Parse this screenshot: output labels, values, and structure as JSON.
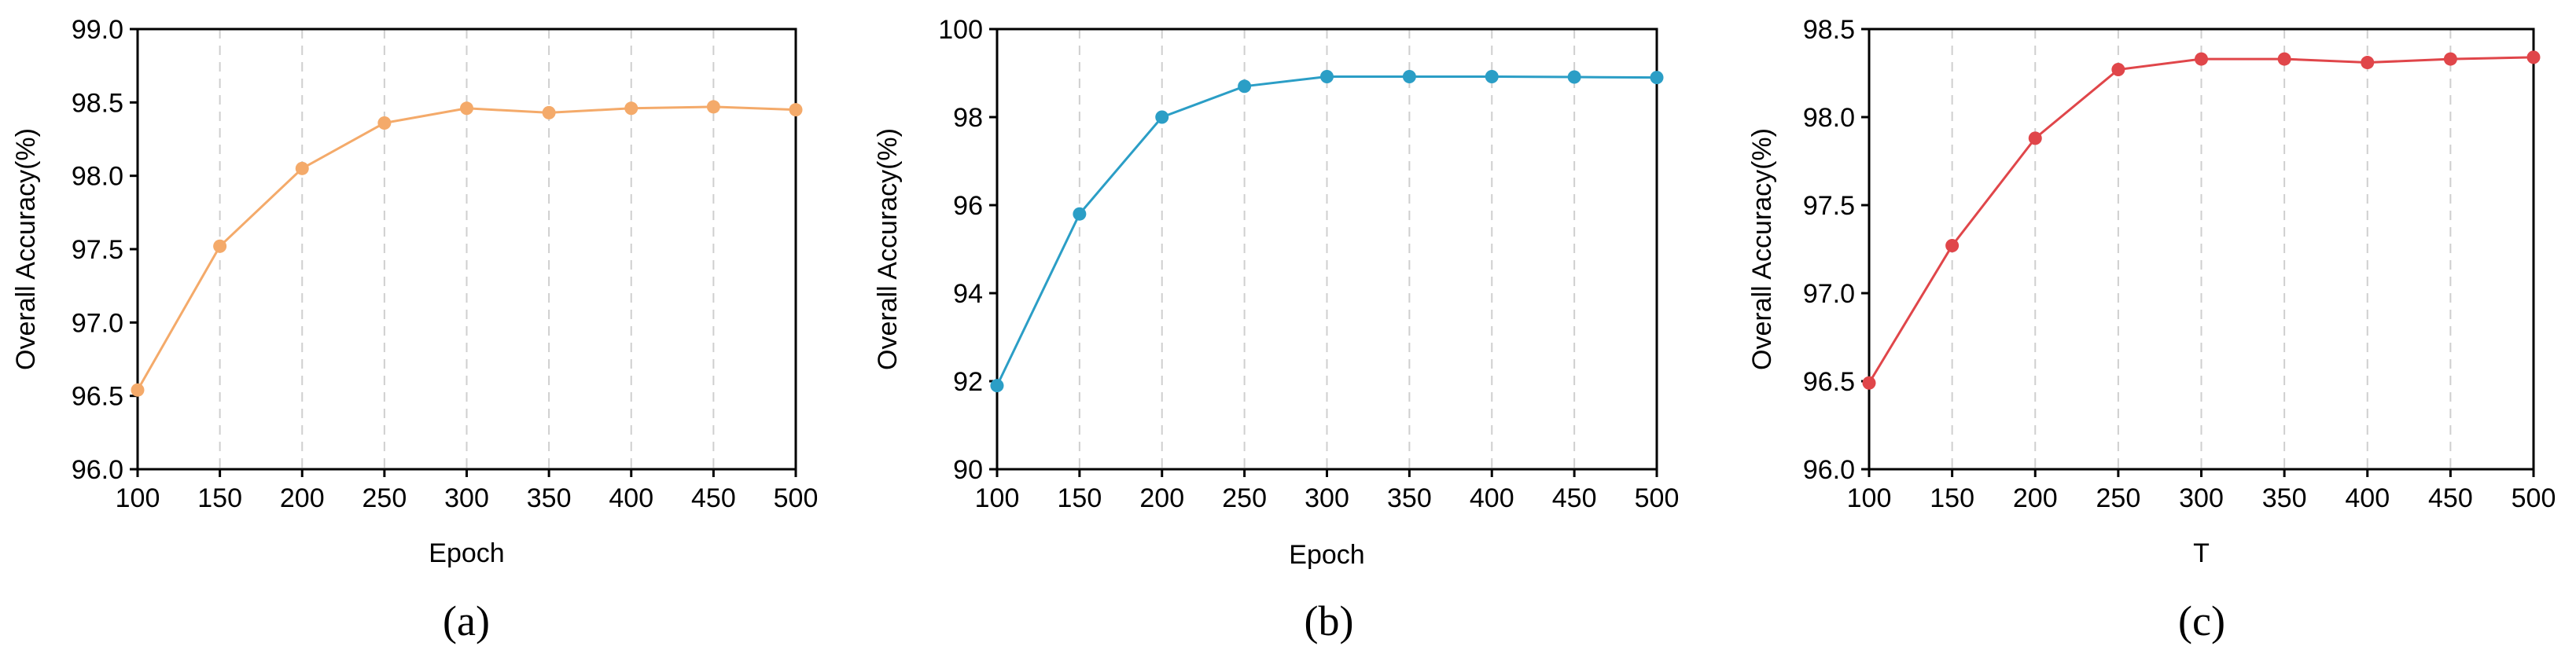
{
  "chart_data": [
    {
      "type": "line",
      "caption": "(a)",
      "xlabel": "Epoch",
      "ylabel": "Overall Accuracy(%)",
      "x": [
        100,
        150,
        200,
        250,
        300,
        350,
        400,
        450,
        500
      ],
      "xlim": [
        100,
        500
      ],
      "ylim": [
        96.0,
        99.0
      ],
      "xticks": [
        "100",
        "150",
        "200",
        "250",
        "300",
        "350",
        "400",
        "450",
        "500"
      ],
      "yticks": [
        "96.0",
        "96.5",
        "97.0",
        "97.5",
        "98.0",
        "98.5",
        "99.0"
      ],
      "grid": "vertical dashed",
      "color": "#f4aa6a",
      "series": [
        {
          "values": [
            96.54,
            97.52,
            98.05,
            98.36,
            98.46,
            98.43,
            98.46,
            98.47,
            98.45
          ]
        }
      ]
    },
    {
      "type": "line",
      "caption": "(b)",
      "xlabel": "Epoch",
      "ylabel": "Overall Accuracy(%)",
      "x": [
        100,
        150,
        200,
        250,
        300,
        350,
        400,
        450,
        500
      ],
      "xlim": [
        100,
        500
      ],
      "ylim": [
        90,
        100
      ],
      "xticks": [
        "100",
        "150",
        "200",
        "250",
        "300",
        "350",
        "400",
        "450",
        "500"
      ],
      "yticks": [
        "90",
        "92",
        "94",
        "96",
        "98",
        "100"
      ],
      "grid": "vertical dashed",
      "color": "#2b9ec6",
      "series": [
        {
          "values": [
            91.9,
            95.8,
            98.0,
            98.7,
            98.92,
            98.92,
            98.92,
            98.91,
            98.9
          ]
        }
      ]
    },
    {
      "type": "line",
      "caption": "(c)",
      "xlabel": "T",
      "ylabel": "Overall Accuracy(%)",
      "x": [
        100,
        150,
        200,
        250,
        300,
        350,
        400,
        450,
        500
      ],
      "xlim": [
        100,
        500
      ],
      "ylim": [
        96.0,
        98.5
      ],
      "xticks": [
        "100",
        "150",
        "200",
        "250",
        "300",
        "350",
        "400",
        "450",
        "500"
      ],
      "yticks": [
        "96.0",
        "96.5",
        "97.0",
        "97.5",
        "98.0",
        "98.5"
      ],
      "grid": "vertical dashed",
      "color": "#e0464a",
      "series": [
        {
          "values": [
            96.49,
            97.27,
            97.88,
            98.27,
            98.33,
            98.33,
            98.31,
            98.33,
            98.34
          ]
        }
      ]
    }
  ]
}
